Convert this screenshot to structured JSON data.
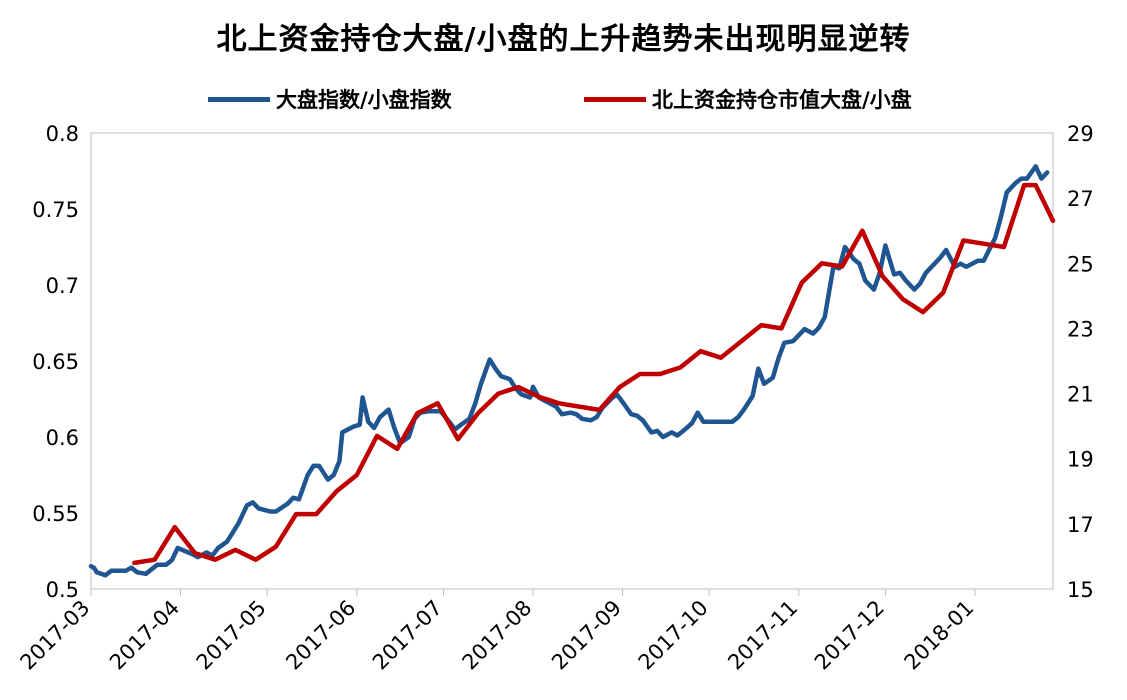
{
  "chart_data": {
    "type": "line",
    "title": "北上资金持仓大盘/小盘的上升趋势未出现明显逆转",
    "xlabel": "",
    "ylabel": "",
    "y2label": "",
    "x_tick_labels": [
      "2017-03",
      "2017-04",
      "2017-05",
      "2017-06",
      "2017-07",
      "2017-08",
      "2017-09",
      "2017-10",
      "2017-11",
      "2017-12",
      "2018-01"
    ],
    "x_range": [
      "2017-03-01",
      "2018-01-28"
    ],
    "ylim": [
      0.5,
      0.8
    ],
    "yticks": [
      "0.5",
      "0.55",
      "0.6",
      "0.65",
      "0.7",
      "0.75",
      "0.8"
    ],
    "y2lim": [
      15,
      29
    ],
    "y2ticks": [
      "15",
      "17",
      "19",
      "21",
      "23",
      "25",
      "27",
      "29"
    ],
    "grid": false,
    "legend_position": "top",
    "series": [
      {
        "name": "大盘指数/小盘指数",
        "axis": "left",
        "color": "#1f5591",
        "points": [
          [
            "2017-03-01",
            0.515
          ],
          [
            "2017-03-02",
            0.514
          ],
          [
            "2017-03-03",
            0.511
          ],
          [
            "2017-03-06",
            0.509
          ],
          [
            "2017-03-08",
            0.512
          ],
          [
            "2017-03-10",
            0.512
          ],
          [
            "2017-03-13",
            0.512
          ],
          [
            "2017-03-15",
            0.514
          ],
          [
            "2017-03-17",
            0.511
          ],
          [
            "2017-03-20",
            0.51
          ],
          [
            "2017-03-22",
            0.513
          ],
          [
            "2017-03-24",
            0.516
          ],
          [
            "2017-03-27",
            0.516
          ],
          [
            "2017-03-29",
            0.519
          ],
          [
            "2017-03-31",
            0.527
          ],
          [
            "2017-04-05",
            0.523
          ],
          [
            "2017-04-07",
            0.521
          ],
          [
            "2017-04-10",
            0.524
          ],
          [
            "2017-04-12",
            0.522
          ],
          [
            "2017-04-14",
            0.527
          ],
          [
            "2017-04-17",
            0.531
          ],
          [
            "2017-04-19",
            0.537
          ],
          [
            "2017-04-21",
            0.543
          ],
          [
            "2017-04-24",
            0.555
          ],
          [
            "2017-04-26",
            0.557
          ],
          [
            "2017-04-28",
            0.553
          ],
          [
            "2017-05-02",
            0.551
          ],
          [
            "2017-05-04",
            0.551
          ],
          [
            "2017-05-08",
            0.556
          ],
          [
            "2017-05-10",
            0.56
          ],
          [
            "2017-05-12",
            0.559
          ],
          [
            "2017-05-15",
            0.575
          ],
          [
            "2017-05-17",
            0.581
          ],
          [
            "2017-05-19",
            0.581
          ],
          [
            "2017-05-22",
            0.572
          ],
          [
            "2017-05-24",
            0.575
          ],
          [
            "2017-05-26",
            0.584
          ],
          [
            "2017-05-27",
            0.603
          ],
          [
            "2017-05-29",
            0.605
          ],
          [
            "2017-05-31",
            0.607
          ],
          [
            "2017-06-02",
            0.608
          ],
          [
            "2017-06-03",
            0.626
          ],
          [
            "2017-06-05",
            0.61
          ],
          [
            "2017-06-07",
            0.606
          ],
          [
            "2017-06-09",
            0.613
          ],
          [
            "2017-06-12",
            0.618
          ],
          [
            "2017-06-14",
            0.606
          ],
          [
            "2017-06-16",
            0.596
          ],
          [
            "2017-06-19",
            0.6
          ],
          [
            "2017-06-21",
            0.612
          ],
          [
            "2017-06-23",
            0.616
          ],
          [
            "2017-06-26",
            0.617
          ],
          [
            "2017-06-28",
            0.617
          ],
          [
            "2017-06-30",
            0.617
          ],
          [
            "2017-07-03",
            0.61
          ],
          [
            "2017-07-05",
            0.605
          ],
          [
            "2017-07-07",
            0.608
          ],
          [
            "2017-07-10",
            0.612
          ],
          [
            "2017-07-12",
            0.622
          ],
          [
            "2017-07-14",
            0.635
          ],
          [
            "2017-07-17",
            0.651
          ],
          [
            "2017-07-19",
            0.645
          ],
          [
            "2017-07-21",
            0.64
          ],
          [
            "2017-07-24",
            0.638
          ],
          [
            "2017-07-26",
            0.632
          ],
          [
            "2017-07-28",
            0.628
          ],
          [
            "2017-07-31",
            0.626
          ],
          [
            "2017-08-01",
            0.633
          ],
          [
            "2017-08-03",
            0.626
          ],
          [
            "2017-08-07",
            0.622
          ],
          [
            "2017-08-09",
            0.62
          ],
          [
            "2017-08-11",
            0.615
          ],
          [
            "2017-08-14",
            0.616
          ],
          [
            "2017-08-16",
            0.615
          ],
          [
            "2017-08-18",
            0.612
          ],
          [
            "2017-08-21",
            0.611
          ],
          [
            "2017-08-23",
            0.613
          ],
          [
            "2017-08-25",
            0.619
          ],
          [
            "2017-08-28",
            0.625
          ],
          [
            "2017-08-30",
            0.628
          ],
          [
            "2017-09-01",
            0.623
          ],
          [
            "2017-09-04",
            0.615
          ],
          [
            "2017-09-06",
            0.614
          ],
          [
            "2017-09-08",
            0.611
          ],
          [
            "2017-09-11",
            0.603
          ],
          [
            "2017-09-13",
            0.604
          ],
          [
            "2017-09-15",
            0.6
          ],
          [
            "2017-09-18",
            0.603
          ],
          [
            "2017-09-20",
            0.601
          ],
          [
            "2017-09-22",
            0.604
          ],
          [
            "2017-09-25",
            0.609
          ],
          [
            "2017-09-27",
            0.616
          ],
          [
            "2017-09-29",
            0.61
          ],
          [
            "2017-10-09",
            0.61
          ],
          [
            "2017-10-11",
            0.613
          ],
          [
            "2017-10-13",
            0.618
          ],
          [
            "2017-10-16",
            0.627
          ],
          [
            "2017-10-18",
            0.645
          ],
          [
            "2017-10-20",
            0.635
          ],
          [
            "2017-10-23",
            0.639
          ],
          [
            "2017-10-25",
            0.652
          ],
          [
            "2017-10-27",
            0.662
          ],
          [
            "2017-10-30",
            0.663
          ],
          [
            "2017-11-01",
            0.667
          ],
          [
            "2017-11-03",
            0.671
          ],
          [
            "2017-11-06",
            0.668
          ],
          [
            "2017-11-08",
            0.672
          ],
          [
            "2017-11-10",
            0.679
          ],
          [
            "2017-11-13",
            0.712
          ],
          [
            "2017-11-15",
            0.711
          ],
          [
            "2017-11-17",
            0.725
          ],
          [
            "2017-11-20",
            0.717
          ],
          [
            "2017-11-22",
            0.714
          ],
          [
            "2017-11-24",
            0.703
          ],
          [
            "2017-11-27",
            0.697
          ],
          [
            "2017-11-29",
            0.708
          ],
          [
            "2017-12-01",
            0.726
          ],
          [
            "2017-12-04",
            0.707
          ],
          [
            "2017-12-06",
            0.708
          ],
          [
            "2017-12-08",
            0.703
          ],
          [
            "2017-12-11",
            0.697
          ],
          [
            "2017-12-13",
            0.701
          ],
          [
            "2017-12-15",
            0.708
          ],
          [
            "2017-12-18",
            0.714
          ],
          [
            "2017-12-20",
            0.718
          ],
          [
            "2017-12-22",
            0.723
          ],
          [
            "2017-12-25",
            0.712
          ],
          [
            "2017-12-27",
            0.714
          ],
          [
            "2017-12-29",
            0.712
          ],
          [
            "2018-01-02",
            0.716
          ],
          [
            "2018-01-04",
            0.716
          ],
          [
            "2018-01-08",
            0.731
          ],
          [
            "2018-01-10",
            0.745
          ],
          [
            "2018-01-12",
            0.761
          ],
          [
            "2018-01-15",
            0.767
          ],
          [
            "2018-01-17",
            0.77
          ],
          [
            "2018-01-19",
            0.77
          ],
          [
            "2018-01-22",
            0.778
          ],
          [
            "2018-01-24",
            0.77
          ],
          [
            "2018-01-26",
            0.774
          ]
        ]
      },
      {
        "name": "北上资金持仓市值大盘/小盘",
        "axis": "right",
        "color": "#c00000",
        "points": [
          [
            "2017-03-16",
            15.8
          ],
          [
            "2017-03-23",
            15.9
          ],
          [
            "2017-03-30",
            16.9
          ],
          [
            "2017-04-06",
            16.1
          ],
          [
            "2017-04-13",
            15.9
          ],
          [
            "2017-04-20",
            16.2
          ],
          [
            "2017-04-27",
            15.9
          ],
          [
            "2017-05-04",
            16.3
          ],
          [
            "2017-05-11",
            17.3
          ],
          [
            "2017-05-18",
            17.3
          ],
          [
            "2017-05-25",
            18.0
          ],
          [
            "2017-06-01",
            18.5
          ],
          [
            "2017-06-08",
            19.7
          ],
          [
            "2017-06-15",
            19.3
          ],
          [
            "2017-06-22",
            20.4
          ],
          [
            "2017-06-29",
            20.7
          ],
          [
            "2017-07-06",
            19.6
          ],
          [
            "2017-07-13",
            20.4
          ],
          [
            "2017-07-20",
            21.0
          ],
          [
            "2017-07-27",
            21.2
          ],
          [
            "2017-08-03",
            20.9
          ],
          [
            "2017-08-10",
            20.7
          ],
          [
            "2017-08-17",
            20.6
          ],
          [
            "2017-08-24",
            20.5
          ],
          [
            "2017-08-31",
            21.2
          ],
          [
            "2017-09-07",
            21.6
          ],
          [
            "2017-09-14",
            21.6
          ],
          [
            "2017-09-21",
            21.8
          ],
          [
            "2017-09-28",
            22.3
          ],
          [
            "2017-10-05",
            22.1
          ],
          [
            "2017-10-12",
            22.6
          ],
          [
            "2017-10-19",
            23.1
          ],
          [
            "2017-10-26",
            23.0
          ],
          [
            "2017-11-02",
            24.4
          ],
          [
            "2017-11-09",
            25.0
          ],
          [
            "2017-11-16",
            24.9
          ],
          [
            "2017-11-23",
            26.0
          ],
          [
            "2017-11-30",
            24.6
          ],
          [
            "2017-12-07",
            23.9
          ],
          [
            "2017-12-14",
            23.5
          ],
          [
            "2017-12-21",
            24.1
          ],
          [
            "2017-12-28",
            25.7
          ],
          [
            "2018-01-04",
            25.6
          ],
          [
            "2018-01-11",
            25.5
          ],
          [
            "2018-01-18",
            27.4
          ],
          [
            "2018-01-22",
            27.4
          ],
          [
            "2018-01-28",
            26.3
          ]
        ]
      }
    ]
  }
}
